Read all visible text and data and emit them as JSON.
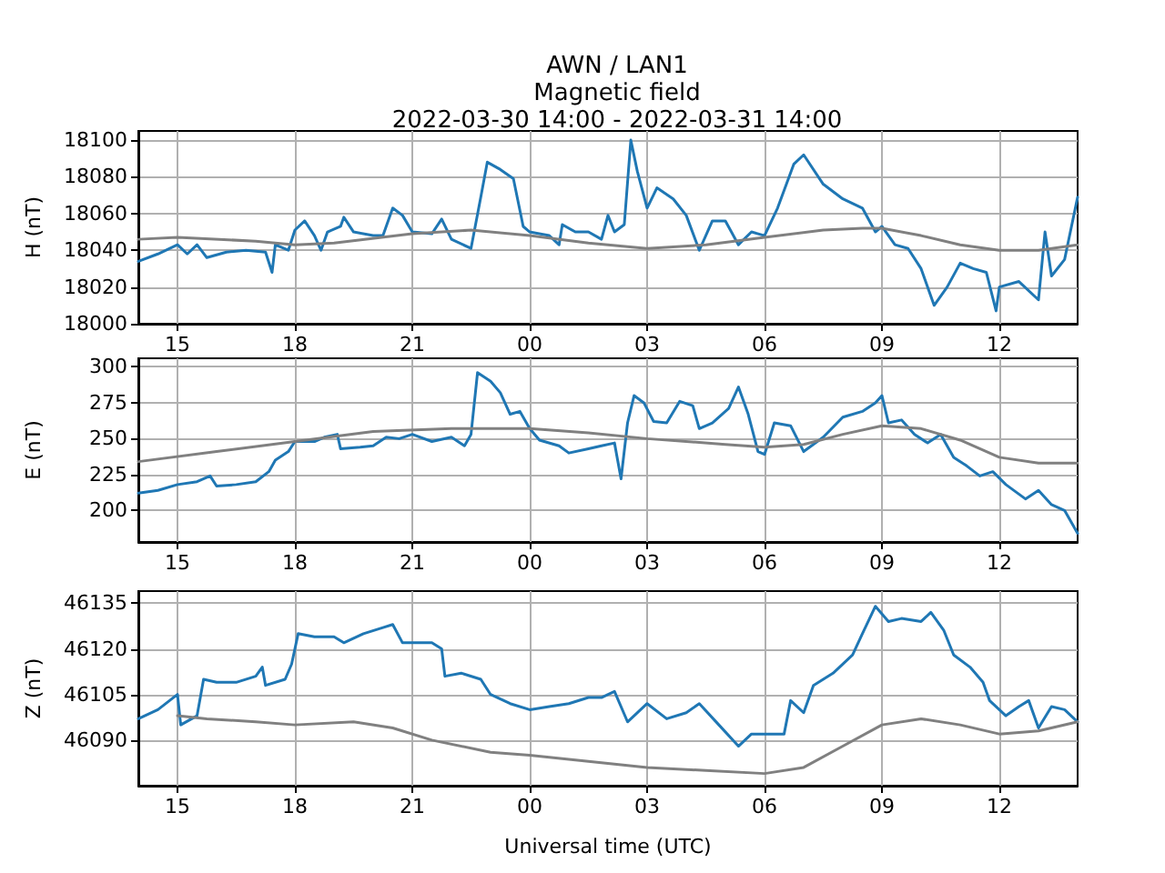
{
  "chart_data": [
    {
      "type": "line",
      "title": "AWN / LAN1\nMagnetic field\n2022-03-30 14:00 - 2022-03-31 14:00",
      "ylabel": "H (nT)",
      "xlim": [
        "2022-03-30T14:00",
        "2022-03-31T14:00"
      ],
      "xticks": [
        {
          "value": "2022-03-30T15:00",
          "label": "15"
        },
        {
          "value": "2022-03-30T18:00",
          "label": "18"
        },
        {
          "value": "2022-03-30T21:00",
          "label": "21"
        },
        {
          "value": "2022-03-31T00:00",
          "label": "00"
        },
        {
          "value": "2022-03-31T03:00",
          "label": "03"
        },
        {
          "value": "2022-03-31T06:00",
          "label": "06"
        },
        {
          "value": "2022-03-31T09:00",
          "label": "09"
        },
        {
          "value": "2022-03-31T12:00",
          "label": "12"
        }
      ],
      "ylim": [
        18000,
        18105
      ],
      "yticks": [
        18000,
        18020,
        18040,
        18060,
        18080,
        18100
      ],
      "grid": true,
      "marker": "none",
      "line_style": "solid",
      "series": [
        {
          "color": "#1f77b4",
          "x": [
            "2022-03-30T14:00",
            "2022-03-30T14:30",
            "2022-03-30T15:00",
            "2022-03-30T15:15",
            "2022-03-30T15:30",
            "2022-03-30T15:45",
            "2022-03-30T16:15",
            "2022-03-30T16:45",
            "2022-03-30T17:15",
            "2022-03-30T17:25",
            "2022-03-30T17:30",
            "2022-03-30T17:50",
            "2022-03-30T18:00",
            "2022-03-30T18:15",
            "2022-03-30T18:30",
            "2022-03-30T18:40",
            "2022-03-30T18:50",
            "2022-03-30T19:10",
            "2022-03-30T19:15",
            "2022-03-30T19:30",
            "2022-03-30T20:00",
            "2022-03-30T20:15",
            "2022-03-30T20:30",
            "2022-03-30T20:45",
            "2022-03-30T21:00",
            "2022-03-30T21:30",
            "2022-03-30T21:45",
            "2022-03-30T22:00",
            "2022-03-30T22:30",
            "2022-03-30T22:45",
            "2022-03-30T22:55",
            "2022-03-30T23:15",
            "2022-03-30T23:35",
            "2022-03-30T23:50",
            "2022-03-31T00:00",
            "2022-03-31T00:30",
            "2022-03-31T00:45",
            "2022-03-31T00:50",
            "2022-03-31T01:10",
            "2022-03-31T01:30",
            "2022-03-31T01:50",
            "2022-03-31T02:00",
            "2022-03-31T02:10",
            "2022-03-31T02:25",
            "2022-03-31T02:35",
            "2022-03-31T02:45",
            "2022-03-31T03:00",
            "2022-03-31T03:15",
            "2022-03-31T03:40",
            "2022-03-31T04:00",
            "2022-03-31T04:20",
            "2022-03-31T04:40",
            "2022-03-31T05:00",
            "2022-03-31T05:20",
            "2022-03-31T05:40",
            "2022-03-31T06:00",
            "2022-03-31T06:20",
            "2022-03-31T06:45",
            "2022-03-31T07:00",
            "2022-03-31T07:30",
            "2022-03-31T08:00",
            "2022-03-31T08:30",
            "2022-03-31T08:50",
            "2022-03-31T09:00",
            "2022-03-31T09:20",
            "2022-03-31T09:40",
            "2022-03-31T10:00",
            "2022-03-31T10:20",
            "2022-03-31T10:40",
            "2022-03-31T11:00",
            "2022-03-31T11:20",
            "2022-03-31T11:40",
            "2022-03-31T11:55",
            "2022-03-31T12:00",
            "2022-03-31T12:30",
            "2022-03-31T13:00",
            "2022-03-31T13:10",
            "2022-03-31T13:20",
            "2022-03-31T13:40",
            "2022-03-31T14:00"
          ],
          "values": [
            18034,
            18038,
            18043,
            18038,
            18043,
            18036,
            18039,
            18040,
            18039,
            18028,
            18043,
            18040,
            18051,
            18056,
            18048,
            18040,
            18050,
            18053,
            18058,
            18050,
            18048,
            18048,
            18063,
            18059,
            18050,
            18049,
            18057,
            18046,
            18041,
            18069,
            18088,
            18084,
            18079,
            18053,
            18050,
            18048,
            18043,
            18054,
            18050,
            18050,
            18046,
            18059,
            18050,
            18054,
            18100,
            18083,
            18063,
            18074,
            18068,
            18059,
            18040,
            18056,
            18056,
            18043,
            18050,
            18048,
            18063,
            18087,
            18092,
            18076,
            18068,
            18063,
            18050,
            18053,
            18043,
            18041,
            18030,
            18010,
            18020,
            18033,
            18030,
            18028,
            18007,
            18020,
            18023,
            18013,
            18050,
            18026,
            18035,
            18069
          ]
        },
        {
          "color": "#808080",
          "x": [
            "2022-03-30T14:00",
            "2022-03-30T15:00",
            "2022-03-30T17:00",
            "2022-03-30T18:00",
            "2022-03-30T19:00",
            "2022-03-30T21:00",
            "2022-03-30T22:30",
            "2022-03-31T00:00",
            "2022-03-31T01:30",
            "2022-03-31T03:00",
            "2022-03-31T04:30",
            "2022-03-31T06:00",
            "2022-03-31T07:30",
            "2022-03-31T08:30",
            "2022-03-31T09:00",
            "2022-03-31T10:00",
            "2022-03-31T11:00",
            "2022-03-31T12:00",
            "2022-03-31T13:00",
            "2022-03-31T14:00"
          ],
          "values": [
            18046,
            18047,
            18045,
            18043,
            18044,
            18049,
            18051,
            18048,
            18044,
            18041,
            18043,
            18047,
            18051,
            18052,
            18052,
            18048,
            18043,
            18040,
            18040,
            18043
          ]
        }
      ]
    },
    {
      "type": "line",
      "ylabel": "E (nT)",
      "xlim": [
        "2022-03-30T14:00",
        "2022-03-31T14:00"
      ],
      "xticks": [
        {
          "value": "2022-03-30T15:00",
          "label": "15"
        },
        {
          "value": "2022-03-30T18:00",
          "label": "18"
        },
        {
          "value": "2022-03-30T21:00",
          "label": "21"
        },
        {
          "value": "2022-03-31T00:00",
          "label": "00"
        },
        {
          "value": "2022-03-31T03:00",
          "label": "03"
        },
        {
          "value": "2022-03-31T06:00",
          "label": "06"
        },
        {
          "value": "2022-03-31T09:00",
          "label": "09"
        },
        {
          "value": "2022-03-31T12:00",
          "label": "12"
        }
      ],
      "ylim": [
        178,
        306
      ],
      "yticks": [
        200,
        225,
        250,
        275,
        300
      ],
      "grid": true,
      "marker": "none",
      "line_style": "solid",
      "series": [
        {
          "color": "#1f77b4",
          "x": [
            "2022-03-30T14:00",
            "2022-03-30T14:30",
            "2022-03-30T15:00",
            "2022-03-30T15:30",
            "2022-03-30T15:50",
            "2022-03-30T16:00",
            "2022-03-30T16:30",
            "2022-03-30T17:00",
            "2022-03-30T17:20",
            "2022-03-30T17:30",
            "2022-03-30T17:50",
            "2022-03-30T18:00",
            "2022-03-30T18:30",
            "2022-03-30T18:45",
            "2022-03-30T19:05",
            "2022-03-30T19:10",
            "2022-03-30T19:40",
            "2022-03-30T20:00",
            "2022-03-30T20:20",
            "2022-03-30T20:40",
            "2022-03-30T21:00",
            "2022-03-30T21:30",
            "2022-03-30T22:00",
            "2022-03-30T22:20",
            "2022-03-30T22:30",
            "2022-03-30T22:40",
            "2022-03-30T23:00",
            "2022-03-30T23:15",
            "2022-03-30T23:30",
            "2022-03-30T23:45",
            "2022-03-31T00:00",
            "2022-03-31T00:15",
            "2022-03-31T00:45",
            "2022-03-31T01:00",
            "2022-03-31T01:30",
            "2022-03-31T01:50",
            "2022-03-31T02:10",
            "2022-03-31T02:20",
            "2022-03-31T02:30",
            "2022-03-31T02:40",
            "2022-03-31T02:55",
            "2022-03-31T03:10",
            "2022-03-31T03:30",
            "2022-03-31T03:50",
            "2022-03-31T04:10",
            "2022-03-31T04:20",
            "2022-03-31T04:40",
            "2022-03-31T05:05",
            "2022-03-31T05:20",
            "2022-03-31T05:35",
            "2022-03-31T05:50",
            "2022-03-31T06:00",
            "2022-03-31T06:15",
            "2022-03-31T06:40",
            "2022-03-31T07:00",
            "2022-03-31T07:30",
            "2022-03-31T08:00",
            "2022-03-31T08:30",
            "2022-03-31T08:50",
            "2022-03-31T09:00",
            "2022-03-31T09:10",
            "2022-03-31T09:30",
            "2022-03-31T09:50",
            "2022-03-31T10:10",
            "2022-03-31T10:30",
            "2022-03-31T10:50",
            "2022-03-31T11:10",
            "2022-03-31T11:30",
            "2022-03-31T11:50",
            "2022-03-31T12:10",
            "2022-03-31T12:40",
            "2022-03-31T13:00",
            "2022-03-31T13:20",
            "2022-03-31T13:40",
            "2022-03-31T14:00"
          ],
          "values": [
            212,
            214,
            218,
            220,
            224,
            217,
            218,
            220,
            227,
            235,
            241,
            248,
            248,
            251,
            253,
            243,
            244,
            245,
            251,
            250,
            253,
            248,
            251,
            245,
            253,
            296,
            290,
            282,
            267,
            269,
            257,
            249,
            245,
            240,
            243,
            245,
            247,
            222,
            261,
            280,
            275,
            262,
            261,
            276,
            273,
            257,
            261,
            271,
            286,
            267,
            241,
            239,
            261,
            259,
            241,
            251,
            265,
            269,
            275,
            280,
            261,
            263,
            253,
            247,
            253,
            237,
            231,
            224,
            227,
            218,
            208,
            214,
            204,
            200,
            184
          ]
        },
        {
          "color": "#808080",
          "x": [
            "2022-03-30T14:00",
            "2022-03-30T16:00",
            "2022-03-30T18:00",
            "2022-03-30T20:00",
            "2022-03-30T22:00",
            "2022-03-31T00:00",
            "2022-03-31T01:30",
            "2022-03-31T03:00",
            "2022-03-31T05:00",
            "2022-03-31T06:00",
            "2022-03-31T07:00",
            "2022-03-31T08:00",
            "2022-03-31T09:00",
            "2022-03-31T10:00",
            "2022-03-31T11:00",
            "2022-03-31T12:00",
            "2022-03-31T13:00",
            "2022-03-31T14:00"
          ],
          "values": [
            234,
            241,
            248,
            255,
            257,
            257,
            254,
            250,
            246,
            244,
            246,
            253,
            259,
            257,
            249,
            237,
            233,
            233
          ]
        }
      ]
    },
    {
      "type": "line",
      "xlabel": "Universal time (UTC)",
      "ylabel": "Z (nT)",
      "xlim": [
        "2022-03-30T14:00",
        "2022-03-31T14:00"
      ],
      "xticks": [
        {
          "value": "2022-03-30T15:00",
          "label": "15"
        },
        {
          "value": "2022-03-30T18:00",
          "label": "18"
        },
        {
          "value": "2022-03-30T21:00",
          "label": "21"
        },
        {
          "value": "2022-03-31T00:00",
          "label": "00"
        },
        {
          "value": "2022-03-31T03:00",
          "label": "03"
        },
        {
          "value": "2022-03-31T06:00",
          "label": "06"
        },
        {
          "value": "2022-03-31T09:00",
          "label": "09"
        },
        {
          "value": "2022-03-31T12:00",
          "label": "12"
        }
      ],
      "ylim": [
        46075,
        46139
      ],
      "yticks": [
        46090,
        46105,
        46120,
        46135
      ],
      "grid": true,
      "marker": "none",
      "line_style": "solid",
      "series": [
        {
          "color": "#1f77b4",
          "x": [
            "2022-03-30T14:00",
            "2022-03-30T14:30",
            "2022-03-30T15:00",
            "2022-03-30T15:05",
            "2022-03-30T15:30",
            "2022-03-30T15:40",
            "2022-03-30T16:00",
            "2022-03-30T16:30",
            "2022-03-30T17:00",
            "2022-03-30T17:10",
            "2022-03-30T17:15",
            "2022-03-30T17:45",
            "2022-03-30T17:55",
            "2022-03-30T18:05",
            "2022-03-30T18:30",
            "2022-03-30T19:00",
            "2022-03-30T19:15",
            "2022-03-30T19:45",
            "2022-03-30T20:15",
            "2022-03-30T20:30",
            "2022-03-30T20:45",
            "2022-03-30T21:00",
            "2022-03-30T21:30",
            "2022-03-30T21:45",
            "2022-03-30T21:50",
            "2022-03-30T22:15",
            "2022-03-30T22:45",
            "2022-03-30T23:00",
            "2022-03-30T23:30",
            "2022-03-31T00:00",
            "2022-03-31T00:30",
            "2022-03-31T01:00",
            "2022-03-31T01:30",
            "2022-03-31T01:50",
            "2022-03-31T02:10",
            "2022-03-31T02:30",
            "2022-03-31T03:00",
            "2022-03-31T03:30",
            "2022-03-31T04:00",
            "2022-03-31T04:20",
            "2022-03-31T04:50",
            "2022-03-31T05:20",
            "2022-03-31T05:40",
            "2022-03-31T06:00",
            "2022-03-31T06:30",
            "2022-03-31T06:40",
            "2022-03-31T07:00",
            "2022-03-31T07:15",
            "2022-03-31T07:45",
            "2022-03-31T08:15",
            "2022-03-31T08:30",
            "2022-03-31T08:50",
            "2022-03-31T09:10",
            "2022-03-31T09:30",
            "2022-03-31T10:00",
            "2022-03-31T10:15",
            "2022-03-31T10:35",
            "2022-03-31T10:50",
            "2022-03-31T11:15",
            "2022-03-31T11:35",
            "2022-03-31T11:45",
            "2022-03-31T12:10",
            "2022-03-31T12:30",
            "2022-03-31T12:45",
            "2022-03-31T13:00",
            "2022-03-31T13:20",
            "2022-03-31T13:40",
            "2022-03-31T14:00"
          ],
          "values": [
            46097,
            46100,
            46105,
            46095,
            46098,
            46110,
            46109,
            46109,
            46111,
            46114,
            46108,
            46110,
            46115,
            46125,
            46124,
            46124,
            46122,
            46125,
            46127,
            46128,
            46122,
            46122,
            46122,
            46120,
            46111,
            46112,
            46110,
            46105,
            46102,
            46100,
            46101,
            46102,
            46104,
            46104,
            46106,
            46096,
            46102,
            46097,
            46099,
            46102,
            46095,
            46088,
            46092,
            46092,
            46092,
            46103,
            46099,
            46108,
            46112,
            46118,
            46125,
            46134,
            46129,
            46130,
            46129,
            46132,
            46126,
            46118,
            46114,
            46109,
            46103,
            46098,
            46101,
            46103,
            46094,
            46101,
            46100,
            46096
          ]
        },
        {
          "color": "#808080",
          "x": [
            "2022-03-30T15:00",
            "2022-03-30T15:45",
            "2022-03-30T17:00",
            "2022-03-30T18:00",
            "2022-03-30T19:30",
            "2022-03-30T20:30",
            "2022-03-30T21:30",
            "2022-03-30T23:00",
            "2022-03-31T00:00",
            "2022-03-31T01:30",
            "2022-03-31T03:00",
            "2022-03-31T04:30",
            "2022-03-31T06:00",
            "2022-03-31T07:00",
            "2022-03-31T08:00",
            "2022-03-31T09:00",
            "2022-03-31T10:00",
            "2022-03-31T11:00",
            "2022-03-31T12:00",
            "2022-03-31T13:00",
            "2022-03-31T14:00"
          ],
          "values": [
            46098,
            46097,
            46096,
            46095,
            46096,
            46094,
            46090,
            46086,
            46085,
            46083,
            46081,
            46080,
            46079,
            46081,
            46088,
            46095,
            46097,
            46095,
            46092,
            46093,
            46096
          ]
        }
      ]
    }
  ]
}
